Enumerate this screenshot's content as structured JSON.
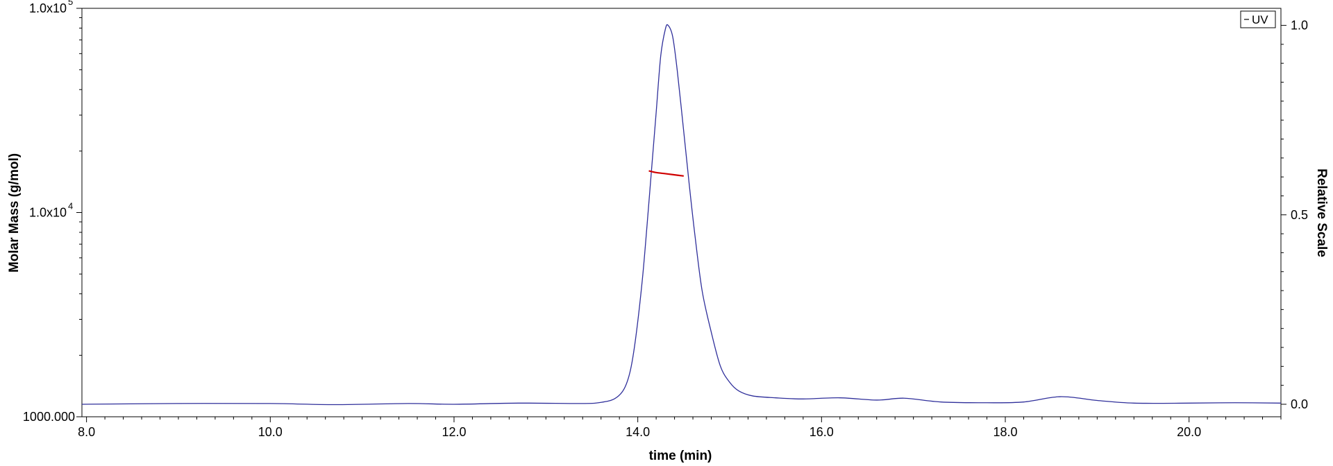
{
  "chart_data": {
    "type": "line",
    "xlabel": "time (min)",
    "ylabel_left": "Molar Mass (g/mol)",
    "ylabel_right": "Relative Scale",
    "xlim": [
      7.95,
      21.0
    ],
    "ylim_left": [
      1000,
      100000
    ],
    "yscale_left": "log",
    "ylim_right": [
      -0.033,
      1.045
    ],
    "x_ticks": [
      "8.0",
      "10.0",
      "12.0",
      "14.0",
      "16.0",
      "18.0",
      "20.0"
    ],
    "y_left_ticks": [
      {
        "value": 1000,
        "label": "1000.000",
        "exp": ""
      },
      {
        "value": 10000,
        "label": "1.0x10",
        "exp": "4"
      },
      {
        "value": 100000,
        "label": "1.0x10",
        "exp": "5"
      }
    ],
    "y_right_ticks": [
      "0.0",
      "0.5",
      "1.0"
    ],
    "legend": {
      "position": "top-right",
      "label": "UV"
    },
    "grid": false,
    "series": [
      {
        "name": "UV",
        "axis": "right",
        "color": "#2e2e9a",
        "points": [
          [
            7.95,
            0.0
          ],
          [
            9.0,
            0.002
          ],
          [
            10.0,
            0.002
          ],
          [
            10.7,
            -0.001
          ],
          [
            11.5,
            0.002
          ],
          [
            12.0,
            0.0
          ],
          [
            12.7,
            0.003
          ],
          [
            13.4,
            0.002
          ],
          [
            13.6,
            0.005
          ],
          [
            13.75,
            0.015
          ],
          [
            13.85,
            0.04
          ],
          [
            13.92,
            0.09
          ],
          [
            13.98,
            0.18
          ],
          [
            14.05,
            0.33
          ],
          [
            14.1,
            0.47
          ],
          [
            14.15,
            0.62
          ],
          [
            14.2,
            0.77
          ],
          [
            14.25,
            0.92
          ],
          [
            14.3,
            0.99
          ],
          [
            14.33,
            1.0
          ],
          [
            14.38,
            0.97
          ],
          [
            14.43,
            0.88
          ],
          [
            14.5,
            0.72
          ],
          [
            14.56,
            0.58
          ],
          [
            14.62,
            0.45
          ],
          [
            14.7,
            0.3
          ],
          [
            14.8,
            0.19
          ],
          [
            14.9,
            0.1
          ],
          [
            15.0,
            0.058
          ],
          [
            15.1,
            0.035
          ],
          [
            15.25,
            0.022
          ],
          [
            15.5,
            0.017
          ],
          [
            15.8,
            0.014
          ],
          [
            16.2,
            0.017
          ],
          [
            16.6,
            0.011
          ],
          [
            16.9,
            0.016
          ],
          [
            17.3,
            0.006
          ],
          [
            17.8,
            0.004
          ],
          [
            18.2,
            0.006
          ],
          [
            18.6,
            0.02
          ],
          [
            19.0,
            0.01
          ],
          [
            19.4,
            0.003
          ],
          [
            20.0,
            0.003
          ],
          [
            20.5,
            0.004
          ],
          [
            21.0,
            0.003
          ]
        ]
      },
      {
        "name": "Molar Mass",
        "axis": "left",
        "color": "#d00000",
        "points": [
          [
            14.12,
            16000
          ],
          [
            14.2,
            15700
          ],
          [
            14.3,
            15500
          ],
          [
            14.4,
            15300
          ],
          [
            14.5,
            15100
          ]
        ]
      }
    ]
  }
}
